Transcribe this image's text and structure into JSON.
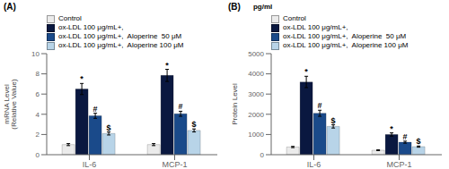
{
  "chart_data": [
    {
      "type": "bar",
      "title": "(A)",
      "y_label": "mRNA Level\n(Relative Value)",
      "categories": [
        "IL-6",
        "MCP-1"
      ],
      "series": [
        {
          "name": "Control",
          "color": "#ebebeb",
          "values": [
            1.0,
            1.0
          ],
          "errors": [
            0.1,
            0.1
          ],
          "annotations": [
            null,
            null
          ]
        },
        {
          "name": "ox-LDL 100 μg/mL+,",
          "color": "#0a1840",
          "values": [
            6.5,
            7.85
          ],
          "errors": [
            0.55,
            0.6
          ],
          "annotations": [
            "*",
            "*"
          ]
        },
        {
          "name": "ox-LDL 100 μg/mL+,  Aloperine  50 μM",
          "color": "#1a4a8a",
          "values": [
            3.85,
            4.05
          ],
          "errors": [
            0.25,
            0.25
          ],
          "annotations": [
            "#",
            "#"
          ]
        },
        {
          "name": "ox-LDL 100 μg/mL+,  Aloperine 100 μM",
          "color": "#b8d4e8",
          "values": [
            2.1,
            2.4
          ],
          "errors": [
            0.15,
            0.15
          ],
          "annotations": [
            "$",
            "$"
          ]
        }
      ],
      "ylim": [
        0,
        10
      ],
      "yticks": [
        0,
        2,
        4,
        6,
        8,
        10
      ],
      "legend": "upper left"
    },
    {
      "type": "bar",
      "title": "(B)",
      "y_label": "Protein Level",
      "annotations": [
        "pg/ml"
      ],
      "categories": [
        "IL-6",
        "MCP-1"
      ],
      "series": [
        {
          "name": "Control",
          "color": "#ebebeb",
          "values": [
            380,
            220
          ],
          "errors": [
            30,
            20
          ],
          "annotations": [
            null,
            null
          ]
        },
        {
          "name": "ox-LDL 100 μg/mL+,",
          "color": "#0a1840",
          "values": [
            3600,
            1000
          ],
          "errors": [
            280,
            80
          ],
          "annotations": [
            "*",
            "*"
          ]
        },
        {
          "name": "ox-LDL 100 μg/mL+,  Aloperine  50 μM",
          "color": "#1a4a8a",
          "values": [
            2050,
            620
          ],
          "errors": [
            150,
            50
          ],
          "annotations": [
            "#",
            "#"
          ]
        },
        {
          "name": "ox-LDL 100 μg/mL+,  Aloperine 100 μM",
          "color": "#b8d4e8",
          "values": [
            1400,
            400
          ],
          "errors": [
            80,
            30
          ],
          "annotations": [
            "$",
            "$"
          ]
        }
      ],
      "ylim": [
        0,
        5000
      ],
      "yticks": [
        0,
        1000,
        2000,
        3000,
        4000,
        5000
      ],
      "legend": "upper left"
    }
  ]
}
